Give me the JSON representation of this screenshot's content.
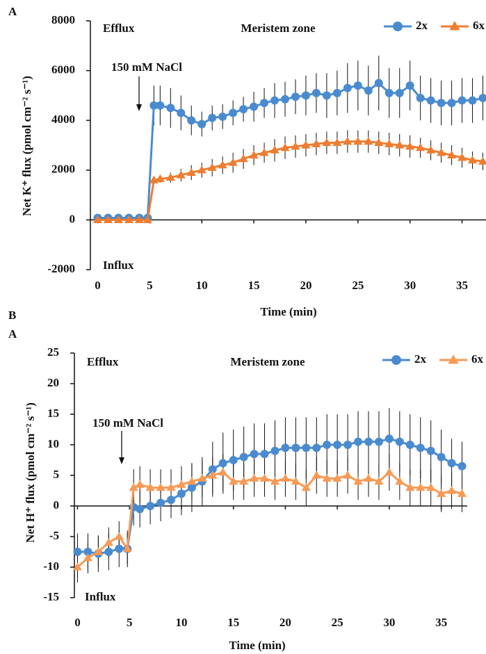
{
  "panel_label_b": "B",
  "chart_data": [
    {
      "type": "line",
      "panel_label": "A",
      "ylabel": "Net K⁺ flux (pmol cm⁻² s⁻¹)",
      "xlabel": "Time (min)",
      "annotations": [
        "Efflux",
        "Influx",
        "Meristem zone",
        "150 mM NaCl"
      ],
      "x": [
        0,
        1,
        2,
        3,
        4,
        4.8,
        5.4,
        6,
        7,
        8,
        9,
        10,
        11,
        12,
        13,
        14,
        15,
        16,
        17,
        18,
        19,
        20,
        21,
        22,
        23,
        24,
        25,
        26,
        27,
        28,
        29,
        30,
        31,
        32,
        33,
        34,
        35,
        36,
        37
      ],
      "xlim": [
        -0.7,
        37.3
      ],
      "xticks": [
        0,
        5,
        10,
        15,
        20,
        25,
        30,
        35
      ],
      "ylim": [
        -2000,
        8000
      ],
      "yticks": [
        -2000,
        0,
        2000,
        4000,
        6000,
        8000
      ],
      "legend": "top-right",
      "series": [
        {
          "name": "2x",
          "color": "#4a8bd0",
          "marker": "circle",
          "values": [
            80,
            80,
            80,
            80,
            80,
            80,
            4600,
            4600,
            4500,
            4300,
            4000,
            3850,
            4100,
            4150,
            4300,
            4450,
            4550,
            4700,
            4800,
            4850,
            4950,
            5000,
            5100,
            5000,
            5100,
            5300,
            5400,
            5200,
            5500,
            5100,
            5100,
            5400,
            4900,
            4800,
            4700,
            4700,
            4800,
            4800,
            4900
          ],
          "errors": [
            60,
            60,
            60,
            60,
            60,
            60,
            800,
            800,
            800,
            700,
            600,
            500,
            500,
            500,
            500,
            500,
            600,
            600,
            700,
            700,
            700,
            800,
            800,
            900,
            900,
            1000,
            1000,
            1000,
            1100,
            1000,
            1000,
            1000,
            900,
            900,
            900,
            900,
            900,
            900,
            900
          ]
        },
        {
          "name": "6x",
          "color": "#ed7d31",
          "marker": "triangle",
          "values": [
            0,
            0,
            0,
            0,
            0,
            0,
            1600,
            1650,
            1700,
            1800,
            1900,
            2000,
            2100,
            2200,
            2300,
            2450,
            2600,
            2700,
            2800,
            2900,
            2950,
            3000,
            3050,
            3100,
            3100,
            3150,
            3150,
            3150,
            3100,
            3050,
            3000,
            2950,
            2900,
            2800,
            2700,
            2600,
            2500,
            2400,
            2350
          ],
          "errors": [
            50,
            50,
            50,
            50,
            50,
            50,
            100,
            150,
            200,
            250,
            300,
            300,
            350,
            350,
            400,
            400,
            400,
            400,
            450,
            450,
            450,
            450,
            450,
            450,
            450,
            450,
            450,
            450,
            450,
            450,
            450,
            450,
            400,
            400,
            400,
            400,
            400,
            350,
            350
          ]
        }
      ]
    },
    {
      "type": "line",
      "panel_label": "A",
      "ylabel": "Net H⁺ flux (pmol cm⁻² s⁻¹)",
      "xlabel": "Time (min)",
      "annotations": [
        "Efflux",
        "Influx",
        "Meristem zone",
        "150 mM NaCl"
      ],
      "x": [
        0,
        1,
        2,
        3,
        4,
        4.8,
        5.4,
        6,
        7,
        8,
        9,
        10,
        11,
        12,
        13,
        14,
        15,
        16,
        17,
        18,
        19,
        20,
        21,
        22,
        23,
        24,
        25,
        26,
        27,
        28,
        29,
        30,
        31,
        32,
        33,
        34,
        35,
        36,
        37
      ],
      "xlim": [
        -0.3,
        37.5
      ],
      "xticks": [
        0,
        5,
        10,
        15,
        20,
        25,
        30,
        35
      ],
      "ylim": [
        -15,
        25
      ],
      "yticks": [
        -15,
        -10,
        -5,
        0,
        5,
        10,
        15,
        20,
        25
      ],
      "legend": "top-right",
      "series": [
        {
          "name": "2x",
          "color": "#4a8bd0",
          "marker": "circle",
          "values": [
            -7.5,
            -7.5,
            -7.8,
            -7.5,
            -7,
            -7,
            -0.2,
            -0.5,
            0,
            0.5,
            1,
            2,
            3,
            4,
            6,
            7,
            7.5,
            8,
            8.5,
            8.5,
            9,
            9.5,
            9.5,
            9.5,
            9.5,
            10,
            10,
            10,
            10.5,
            10.5,
            10.5,
            11,
            10.5,
            10,
            9.5,
            9,
            8,
            7,
            6.5
          ],
          "errors": [
            3,
            3,
            3,
            3,
            3,
            3,
            3,
            3,
            3,
            3,
            3,
            3.5,
            4,
            4,
            4.5,
            5,
            5,
            5,
            5,
            5,
            5,
            5,
            5,
            5,
            5,
            5,
            5,
            5,
            5,
            5,
            5,
            5,
            5,
            5,
            5,
            5,
            4.5,
            4,
            4
          ]
        },
        {
          "name": "6x",
          "color": "#f79a55",
          "marker": "triangle",
          "values": [
            -10,
            -8.5,
            -7.5,
            -6,
            -5,
            -7,
            3,
            3.5,
            3,
            3,
            3,
            3.5,
            4,
            4.5,
            5,
            5.5,
            4,
            4,
            4.5,
            4.5,
            4,
            4.5,
            4,
            3,
            5,
            4.5,
            4.5,
            5,
            4,
            4.5,
            4,
            5.5,
            4,
            3,
            3,
            3,
            2,
            2.5,
            2
          ],
          "errors": [
            2.5,
            2.5,
            2.5,
            2.5,
            2.5,
            2.5,
            3,
            3,
            3,
            3,
            3,
            3,
            3,
            3,
            3,
            3,
            3,
            3,
            3,
            3,
            3,
            3,
            3,
            3,
            3,
            3,
            3,
            3,
            3,
            3,
            3,
            3,
            3,
            3,
            3,
            3,
            3,
            3,
            3
          ]
        }
      ]
    }
  ]
}
